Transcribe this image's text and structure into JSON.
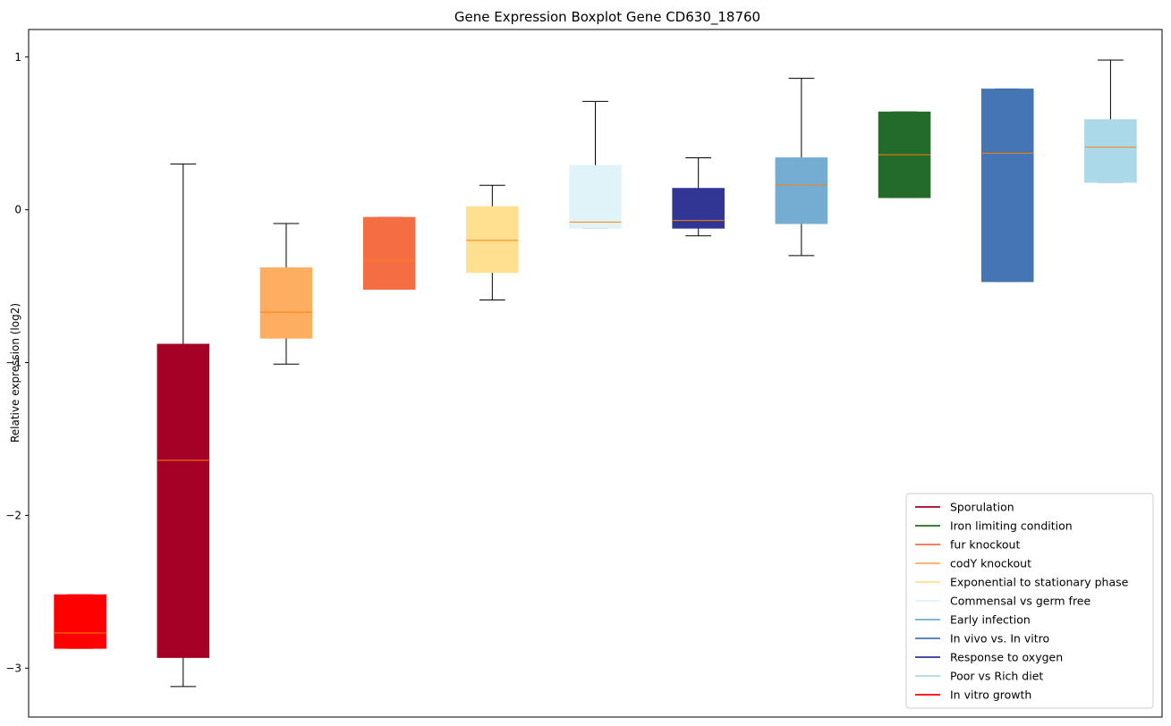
{
  "chart_data": {
    "type": "boxplot",
    "title": "Gene Expression Boxplot Gene CD630_18760",
    "xlabel": "",
    "ylabel": "Relative expression (log2)",
    "ylim": [
      -3.32,
      1.18
    ],
    "yticks": [
      1,
      0,
      -1,
      -2,
      -3
    ],
    "ytick_labels": [
      "1",
      "0",
      "−1",
      "−2",
      "−3"
    ],
    "median_color": "#ff7f0e",
    "boxes": [
      {
        "name": "In vitro growth",
        "color": "#ff0000",
        "whislo": -2.87,
        "q1": -2.87,
        "med": -2.77,
        "q3": -2.52,
        "whishi": -2.52
      },
      {
        "name": "Sporulation",
        "color": "#a50026",
        "whislo": -3.12,
        "q1": -2.93,
        "med": -1.64,
        "q3": -0.88,
        "whishi": 0.3
      },
      {
        "name": "codY knockout",
        "color": "#fdae61",
        "whislo": -1.01,
        "q1": -0.84,
        "med": -0.67,
        "q3": -0.38,
        "whishi": -0.09
      },
      {
        "name": "fur knockout",
        "color": "#f46d43",
        "whislo": -0.52,
        "q1": -0.52,
        "med": -0.33,
        "q3": -0.05,
        "whishi": -0.05
      },
      {
        "name": "Exponential to stationary phase",
        "color": "#fee090",
        "whislo": -0.59,
        "q1": -0.41,
        "med": -0.2,
        "q3": 0.02,
        "whishi": 0.16
      },
      {
        "name": "Commensal vs germ free",
        "color": "#e0f3f8",
        "whislo": -0.12,
        "q1": -0.12,
        "med": -0.08,
        "q3": 0.29,
        "whishi": 0.71
      },
      {
        "name": "Response to oxygen",
        "color": "#313695",
        "whislo": -0.17,
        "q1": -0.12,
        "med": -0.07,
        "q3": 0.14,
        "whishi": 0.34
      },
      {
        "name": "Early infection",
        "color": "#74add1",
        "whislo": -0.3,
        "q1": -0.09,
        "med": 0.16,
        "q3": 0.34,
        "whishi": 0.86
      },
      {
        "name": "Iron limiting condition",
        "color": "#226b2a",
        "whislo": 0.08,
        "q1": 0.08,
        "med": 0.36,
        "q3": 0.64,
        "whishi": 0.64
      },
      {
        "name": "In vivo vs. In vitro",
        "color": "#4575b4",
        "whislo": -0.47,
        "q1": -0.47,
        "med": 0.37,
        "q3": 0.79,
        "whishi": 0.79
      },
      {
        "name": "Poor vs Rich diet",
        "color": "#abd9e9",
        "whislo": 0.18,
        "q1": 0.18,
        "med": 0.41,
        "q3": 0.59,
        "whishi": 0.98
      }
    ],
    "legend": {
      "placement": "lower-right",
      "entries": [
        {
          "label": "Sporulation",
          "color": "#a50026"
        },
        {
          "label": "Iron limiting condition",
          "color": "#226b2a"
        },
        {
          "label": "fur knockout",
          "color": "#f46d43"
        },
        {
          "label": "codY knockout",
          "color": "#fdae61"
        },
        {
          "label": "Exponential to stationary phase",
          "color": "#fee090"
        },
        {
          "label": "Commensal vs germ free",
          "color": "#e0f3f8"
        },
        {
          "label": "Early infection",
          "color": "#74add1"
        },
        {
          "label": "In vivo vs. In vitro",
          "color": "#4575b4"
        },
        {
          "label": "Response to oxygen",
          "color": "#313695"
        },
        {
          "label": "Poor vs Rich diet",
          "color": "#abd9e9"
        },
        {
          "label": "In vitro growth",
          "color": "#ff0000"
        }
      ]
    }
  }
}
